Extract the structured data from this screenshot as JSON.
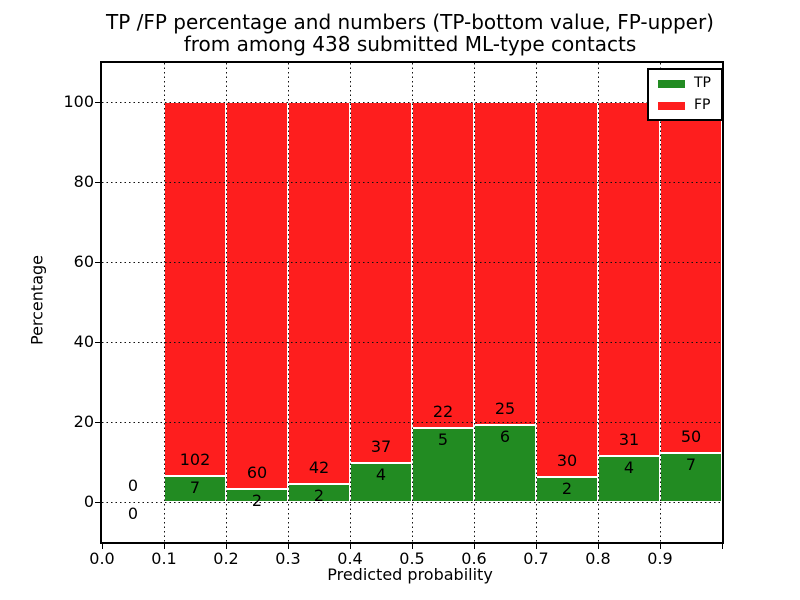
{
  "figure": {
    "title_line1": "TP /FP percentage and numbers (TP-bottom value, FP-upper)",
    "title_line2": "from among 438 submitted ML-type contacts",
    "xlabel": "Predicted probability",
    "ylabel": "Percentage"
  },
  "legend": {
    "position": "upper right",
    "items": [
      {
        "label": "TP",
        "color": "#228b22"
      },
      {
        "label": "FP",
        "color": "#fe1e1e"
      }
    ]
  },
  "colors": {
    "tp": "#228b22",
    "fp": "#fe1e1e",
    "bar_edge": "#ffffff",
    "grid": "#111111",
    "background": "#ffffff",
    "text": "#000000"
  },
  "chart_data": {
    "type": "bar",
    "stacked": true,
    "title": "TP /FP percentage and numbers (TP-bottom value, FP-upper)\nfrom among 438 submitted ML-type contacts",
    "xlabel": "Predicted probability",
    "ylabel": "Percentage",
    "xlim": [
      0.0,
      1.0
    ],
    "ylim": [
      -10,
      110
    ],
    "x_tick_labels": [
      "0.0",
      "0.1",
      "0.2",
      "0.3",
      "0.4",
      "0.5",
      "0.6",
      "0.7",
      "0.8",
      "0.9"
    ],
    "y_tick_values": [
      0,
      20,
      40,
      60,
      80,
      100
    ],
    "grid": true,
    "grid_style": "dotted",
    "bar_total_pct": 100,
    "total_contacts": 438,
    "series_note": "Each 0.1-wide bin stacks TP% (green, bottom) and FP% (red, top) to 100%; printed numbers are raw counts (TP below boundary, FP above).",
    "bins": [
      {
        "range": [
          0.0,
          0.1
        ],
        "tp": 0,
        "fp": 0,
        "tp_pct": 0
      },
      {
        "range": [
          0.1,
          0.2
        ],
        "tp": 7,
        "fp": 102,
        "tp_pct": 6.42
      },
      {
        "range": [
          0.2,
          0.3
        ],
        "tp": 2,
        "fp": 60,
        "tp_pct": 3.23
      },
      {
        "range": [
          0.3,
          0.4
        ],
        "tp": 2,
        "fp": 42,
        "tp_pct": 4.55
      },
      {
        "range": [
          0.4,
          0.5
        ],
        "tp": 4,
        "fp": 37,
        "tp_pct": 9.76
      },
      {
        "range": [
          0.5,
          0.6
        ],
        "tp": 5,
        "fp": 22,
        "tp_pct": 18.52
      },
      {
        "range": [
          0.6,
          0.7
        ],
        "tp": 6,
        "fp": 25,
        "tp_pct": 19.35
      },
      {
        "range": [
          0.7,
          0.8
        ],
        "tp": 2,
        "fp": 30,
        "tp_pct": 6.25
      },
      {
        "range": [
          0.8,
          0.9
        ],
        "tp": 4,
        "fp": 31,
        "tp_pct": 11.43
      },
      {
        "range": [
          0.9,
          1.0
        ],
        "tp": 7,
        "fp": 50,
        "tp_pct": 12.28
      }
    ]
  }
}
